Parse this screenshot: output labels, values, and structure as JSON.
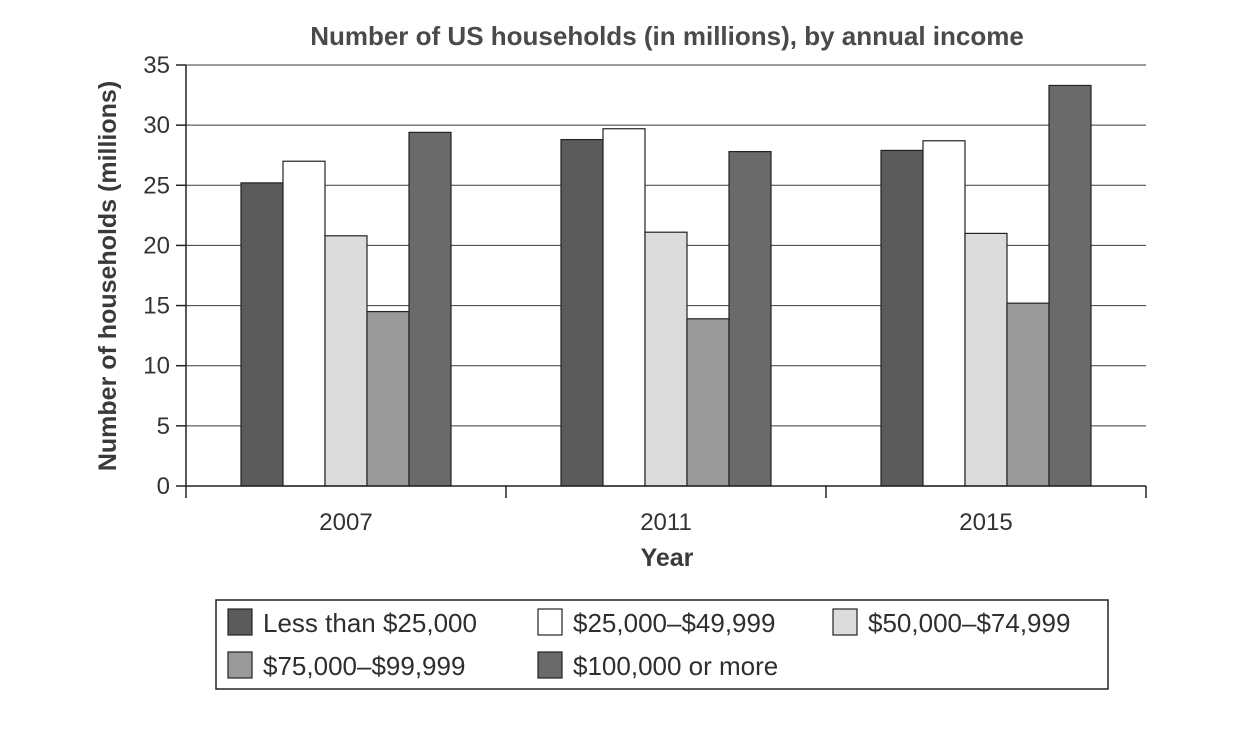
{
  "chart_data": {
    "type": "bar",
    "title": "Number of US households (in millions), by annual income",
    "xlabel": "Year",
    "ylabel": "Number of households (millions)",
    "categories": [
      "2007",
      "2011",
      "2015"
    ],
    "yticks": [
      0,
      5,
      10,
      15,
      20,
      25,
      30,
      35
    ],
    "ylim": [
      0,
      35
    ],
    "grid": true,
    "legend_position": "bottom",
    "series": [
      {
        "name": "Less than $25,000",
        "values": [
          25.2,
          28.8,
          27.9
        ],
        "color": "#5b5b5b"
      },
      {
        "name": "$25,000–$49,999",
        "values": [
          27.0,
          29.7,
          28.7
        ],
        "color": "#ffffff"
      },
      {
        "name": "$50,000–$74,999",
        "values": [
          20.8,
          21.1,
          21.0
        ],
        "color": "#dcdcdc"
      },
      {
        "name": "$75,000–$99,999",
        "values": [
          14.5,
          13.9,
          15.2
        ],
        "color": "#9a9a9a"
      },
      {
        "name": "$100,000 or more",
        "values": [
          29.4,
          27.8,
          33.3
        ],
        "color": "#6a6a6a"
      }
    ]
  }
}
